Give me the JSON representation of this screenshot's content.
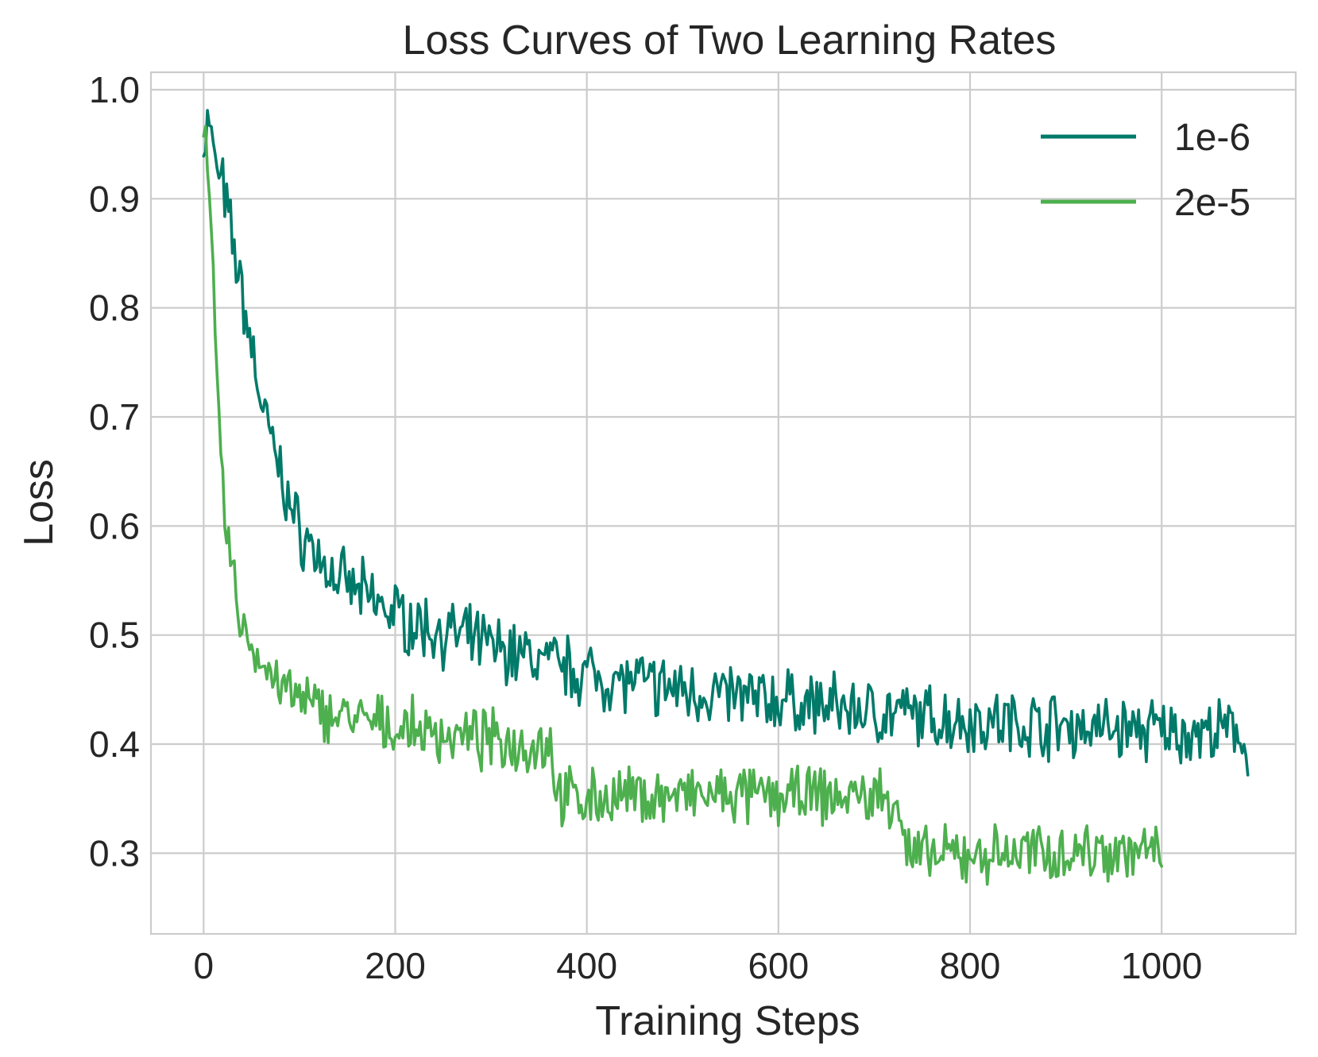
{
  "chart_data": {
    "type": "line",
    "title": "Loss Curves of Two Learning Rates",
    "xlabel": "Training Steps",
    "ylabel": "Loss",
    "xlim": [
      -55,
      1140
    ],
    "ylim": [
      0.226,
      1.016
    ],
    "x_ticks": [
      0,
      200,
      400,
      600,
      800,
      1000
    ],
    "x_tick_labels": [
      "0",
      "200",
      "400",
      "600",
      "800",
      "1000"
    ],
    "y_ticks": [
      0.3,
      0.4,
      0.5,
      0.6,
      0.7,
      0.8,
      0.9,
      1.0
    ],
    "y_tick_labels": [
      "0.3",
      "0.4",
      "0.5",
      "0.6",
      "0.7",
      "0.8",
      "0.9",
      "1.0"
    ],
    "grid": true,
    "legend_position": "top-right",
    "series": [
      {
        "name": "1e-6",
        "color": "#017a6a",
        "x": [
          0,
          5,
          10,
          15,
          20,
          25,
          30,
          35,
          40,
          45,
          50,
          55,
          60,
          65,
          70,
          75,
          80,
          85,
          90,
          95,
          100,
          110,
          120,
          130,
          140,
          150,
          160,
          170,
          180,
          190,
          200,
          220,
          240,
          260,
          280,
          300,
          320,
          340,
          360,
          380,
          400,
          420,
          440,
          460,
          480,
          500,
          520,
          540,
          560,
          580,
          600,
          620,
          640,
          660,
          680,
          700,
          720,
          740,
          760,
          780,
          800,
          820,
          840,
          860,
          880,
          900,
          920,
          940,
          960,
          980,
          1000,
          1020,
          1040,
          1060,
          1080,
          1090
        ],
        "values": [
          0.95,
          0.975,
          0.94,
          0.925,
          0.91,
          0.885,
          0.86,
          0.84,
          0.81,
          0.79,
          0.765,
          0.74,
          0.715,
          0.695,
          0.68,
          0.665,
          0.65,
          0.635,
          0.62,
          0.605,
          0.595,
          0.585,
          0.57,
          0.56,
          0.55,
          0.545,
          0.54,
          0.535,
          0.53,
          0.525,
          0.52,
          0.51,
          0.505,
          0.5,
          0.495,
          0.49,
          0.485,
          0.48,
          0.475,
          0.47,
          0.465,
          0.46,
          0.458,
          0.455,
          0.452,
          0.45,
          0.448,
          0.445,
          0.443,
          0.441,
          0.44,
          0.438,
          0.436,
          0.434,
          0.432,
          0.43,
          0.428,
          0.426,
          0.424,
          0.423,
          0.422,
          0.421,
          0.42,
          0.419,
          0.418,
          0.417,
          0.416,
          0.415,
          0.414,
          0.413,
          0.412,
          0.411,
          0.41,
          0.41,
          0.41,
          0.4
        ]
      },
      {
        "name": "2e-5",
        "color": "#4daf4e",
        "x": [
          0,
          3,
          6,
          9,
          12,
          15,
          18,
          22,
          26,
          30,
          35,
          40,
          45,
          50,
          60,
          70,
          80,
          90,
          100,
          120,
          140,
          160,
          180,
          200,
          220,
          240,
          260,
          280,
          300,
          320,
          340,
          355,
          362,
          366,
          370,
          380,
          400,
          450,
          500,
          550,
          600,
          650,
          700,
          725,
          728,
          732,
          740,
          760,
          800,
          850,
          900,
          950,
          1000
        ],
        "values": [
          0.95,
          0.965,
          0.91,
          0.83,
          0.77,
          0.71,
          0.66,
          0.61,
          0.58,
          0.555,
          0.53,
          0.51,
          0.5,
          0.49,
          0.475,
          0.465,
          0.455,
          0.445,
          0.44,
          0.432,
          0.427,
          0.422,
          0.418,
          0.415,
          0.413,
          0.41,
          0.408,
          0.405,
          0.403,
          0.401,
          0.4,
          0.399,
          0.405,
          0.37,
          0.355,
          0.35,
          0.35,
          0.352,
          0.352,
          0.352,
          0.352,
          0.352,
          0.352,
          0.35,
          0.33,
          0.305,
          0.298,
          0.296,
          0.298,
          0.3,
          0.302,
          0.303,
          0.3
        ]
      }
    ]
  }
}
